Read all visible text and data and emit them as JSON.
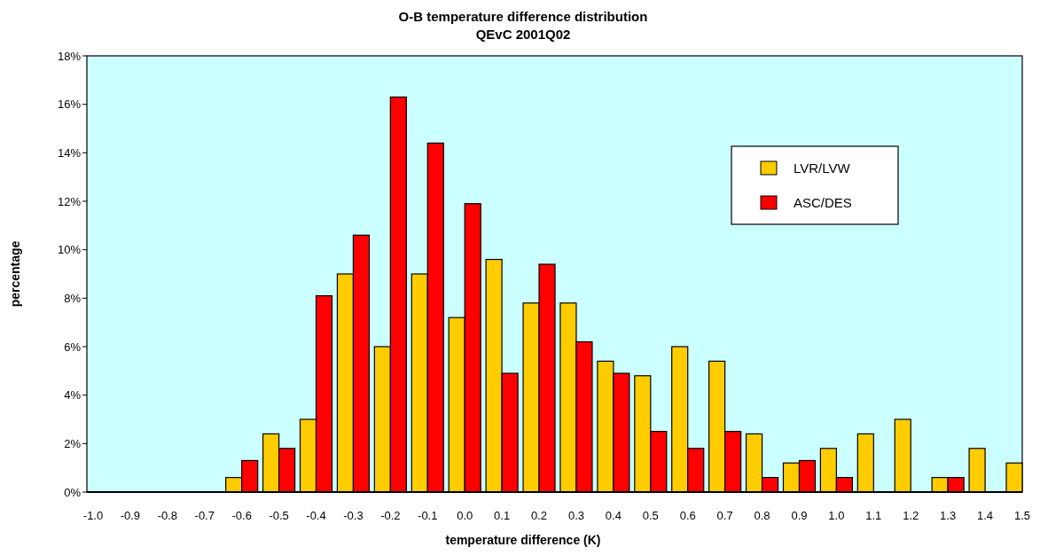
{
  "chart_data": {
    "type": "bar",
    "title": "O-B temperature difference distribution",
    "subtitle": "QEvC 2001Q02",
    "xlabel": "temperature difference (K)",
    "ylabel": "percentage",
    "categories": [
      "-1.0",
      "-0.9",
      "-0.8",
      "-0.7",
      "-0.6",
      "-0.5",
      "-0.4",
      "-0.3",
      "-0.2",
      "-0.1",
      "0.0",
      "0.1",
      "0.2",
      "0.3",
      "0.4",
      "0.5",
      "0.6",
      "0.7",
      "0.8",
      "0.9",
      "1.0",
      "1.1",
      "1.2",
      "1.3",
      "1.4",
      "1.5"
    ],
    "series": [
      {
        "name": "LVR/LVW",
        "color": "#ffcc00",
        "values": [
          0,
          0,
          0,
          0,
          0.6,
          2.4,
          3.0,
          9.0,
          6.0,
          9.0,
          7.2,
          9.6,
          7.8,
          7.8,
          5.4,
          4.8,
          6.0,
          5.4,
          2.4,
          1.2,
          1.8,
          2.4,
          3.0,
          0.6,
          1.8,
          1.2
        ]
      },
      {
        "name": "ASC/DES",
        "color": "#ff0000",
        "values": [
          0,
          0,
          0,
          0,
          1.3,
          1.8,
          8.1,
          10.6,
          16.3,
          14.4,
          11.9,
          4.9,
          9.4,
          6.2,
          4.9,
          2.5,
          1.8,
          2.5,
          0.6,
          1.3,
          0.6,
          0,
          0,
          0.6,
          0,
          0
        ]
      }
    ],
    "ylim": [
      0,
      18
    ],
    "yticks": [
      {
        "value": 0,
        "label": "0%"
      },
      {
        "value": 2,
        "label": "2%"
      },
      {
        "value": 4,
        "label": "4%"
      },
      {
        "value": 6,
        "label": "6%"
      },
      {
        "value": 8,
        "label": "8%"
      },
      {
        "value": 10,
        "label": "10%"
      },
      {
        "value": 12,
        "label": "12%"
      },
      {
        "value": 14,
        "label": "14%"
      },
      {
        "value": 16,
        "label": "16%"
      },
      {
        "value": 18,
        "label": "18%"
      }
    ],
    "grid": false,
    "legend": "top right"
  }
}
